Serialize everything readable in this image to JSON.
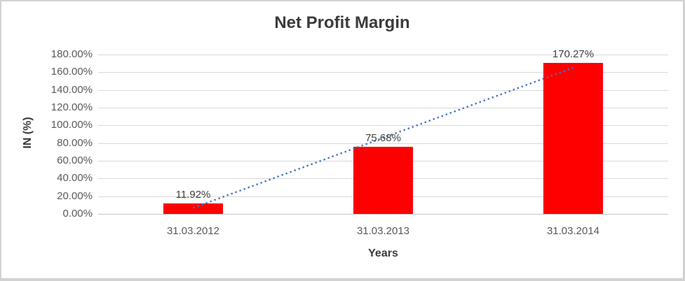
{
  "chart": {
    "title": "Net Profit Margin",
    "y_axis_title": "IN (%)",
    "x_axis_title": "Years"
  },
  "chart_data": {
    "type": "bar",
    "title": "Net Profit Margin",
    "xlabel": "Years",
    "ylabel": "IN (%)",
    "categories": [
      "31.03.2012",
      "31.03.2013",
      "31.03.2014"
    ],
    "values": [
      11.92,
      75.68,
      170.27
    ],
    "data_labels": [
      "11.92%",
      "75.68%",
      "170.27%"
    ],
    "ylim": [
      0,
      180
    ],
    "ytick_interval": 20,
    "ytick_labels": [
      "0.00%",
      "20.00%",
      "40.00%",
      "60.00%",
      "80.00%",
      "100.00%",
      "120.00%",
      "140.00%",
      "160.00%",
      "180.00%"
    ],
    "grid": true,
    "legend": "none",
    "bar_color": "#FF0000",
    "trendline": {
      "type": "linear",
      "style": "dotted",
      "color": "#4472C4"
    }
  },
  "colors": {
    "bar": "#FF0000",
    "trendline": "#4472C4",
    "gridline": "#D9D9D9",
    "axis_line": "#C6C6C6",
    "title_text": "#3B3B3B",
    "tick_text": "#595959",
    "border": "#D2D2D2"
  }
}
